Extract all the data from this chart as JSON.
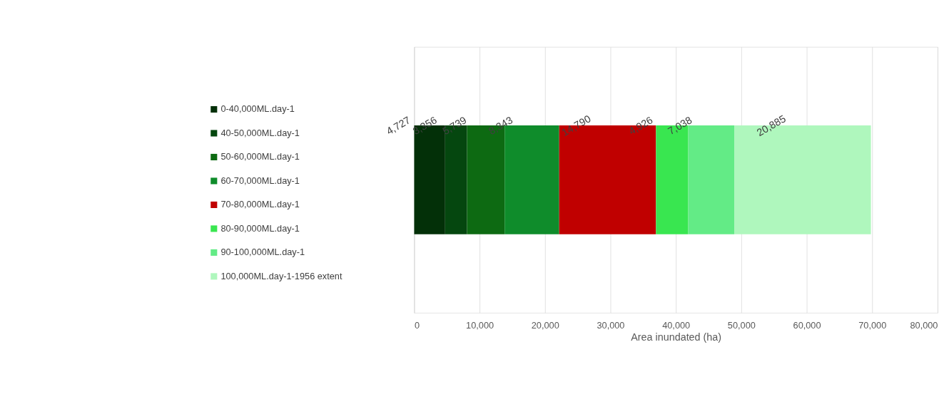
{
  "chart_data": {
    "type": "bar",
    "orientation": "horizontal",
    "stacked": true,
    "categories": [
      null
    ],
    "xlabel": "Area inundated (ha)",
    "xlim": [
      0,
      80000
    ],
    "xticks": [
      0,
      {
        "value": 10000,
        "label": "10,000"
      },
      {
        "value": 20000,
        "label": "20,000"
      },
      {
        "value": 30000,
        "label": "30,000"
      },
      {
        "value": 40000,
        "label": "40,000"
      },
      {
        "value": 50000,
        "label": "50,000"
      },
      {
        "value": 60000,
        "label": "60,000"
      },
      {
        "value": 70000,
        "label": "70,000"
      },
      {
        "value": 80000,
        "label": "80,000"
      }
    ],
    "grid": "x",
    "legend": "left",
    "tick_labels": "x",
    "series": [
      {
        "name": "0-40,000ML.day-1",
        "color": "#033008",
        "values": [
          4727
        ],
        "value_labels": [
          "4,727"
        ]
      },
      {
        "name": "40-50,000ML.day-1",
        "color": "#05470f",
        "values": [
          3356
        ],
        "value_labels": [
          "3,356"
        ]
      },
      {
        "name": "50-60,000ML.day-1",
        "color": "#0d6a12",
        "values": [
          5739
        ],
        "value_labels": [
          "5,739"
        ]
      },
      {
        "name": "60-70,000ML.day-1",
        "color": "#0f8c2b",
        "values": [
          8343
        ],
        "value_labels": [
          "8,343"
        ]
      },
      {
        "name": "70-80,000ML.day-1",
        "color": "#c00000",
        "values": [
          14790
        ],
        "value_labels": [
          "14,790"
        ]
      },
      {
        "name": "80-90,000ML.day-1",
        "color": "#39e650",
        "values": [
          4926
        ],
        "value_labels": [
          "4,926"
        ]
      },
      {
        "name": "90-100,000ML.day-1",
        "color": "#63eb86",
        "values": [
          7038
        ],
        "value_labels": [
          "7,038"
        ]
      },
      {
        "name": "100,000ML.day-1-1956 extent",
        "color": "#aff7bd",
        "values": [
          20885
        ],
        "value_labels": [
          "20,885"
        ]
      }
    ]
  }
}
